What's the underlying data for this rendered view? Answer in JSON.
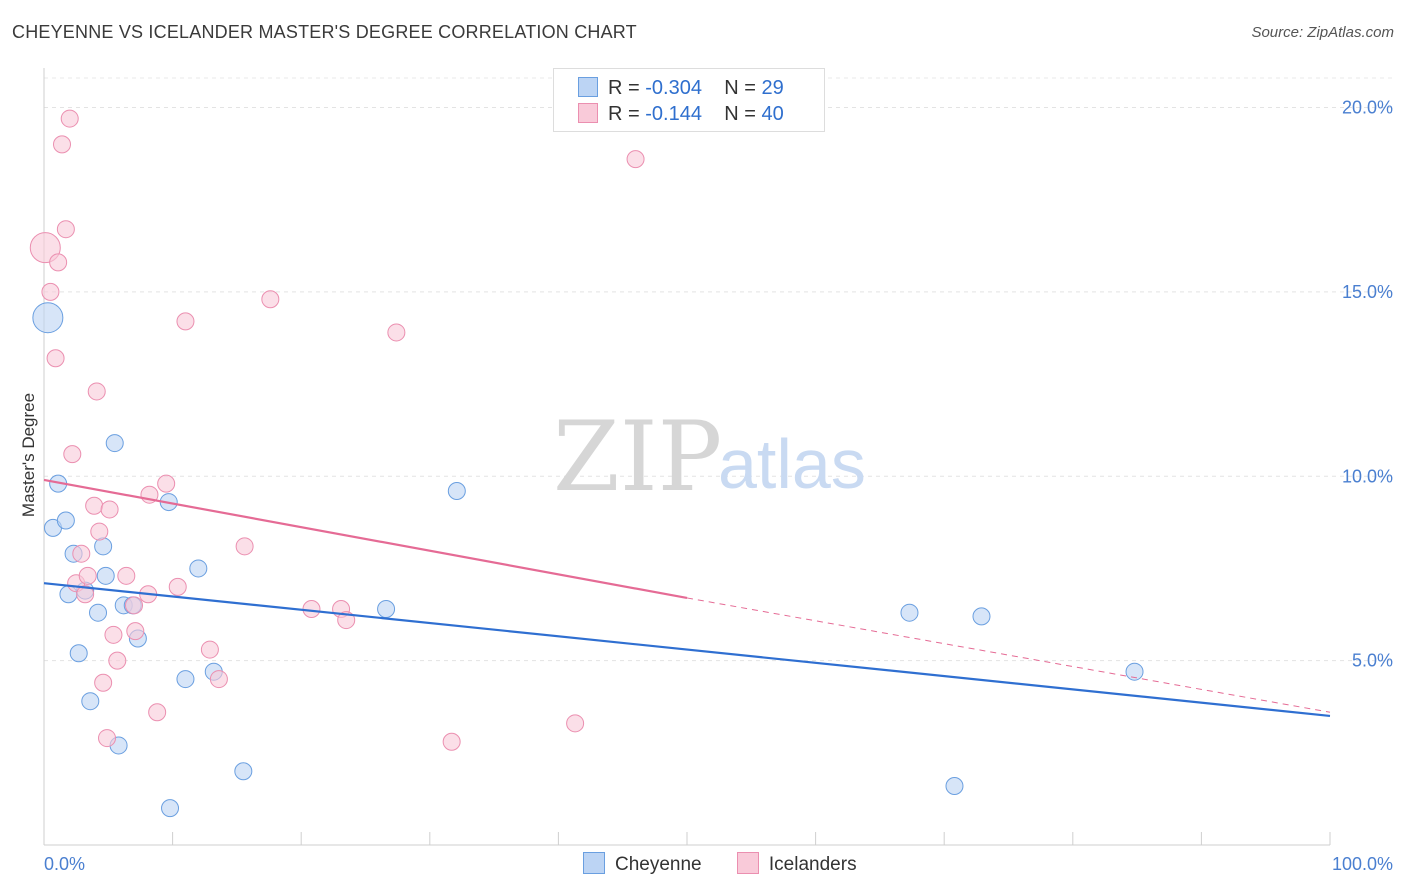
{
  "header": {
    "title": "CHEYENNE VS ICELANDER MASTER'S DEGREE CORRELATION CHART",
    "source": "Source: ZipAtlas.com"
  },
  "watermark": {
    "zip": "ZIP",
    "atlas": "atlas"
  },
  "legend": {
    "rows": [
      {
        "r_label": "R =",
        "r_value": "-0.304",
        "n_label": "N =",
        "n_value": "29",
        "color": "#6a9fe0",
        "fill": "#bcd4f4"
      },
      {
        "r_label": "R =",
        "r_value": "-0.144",
        "n_label": "N =",
        "n_value": "40",
        "color": "#eb8fb0",
        "fill": "#f9cad9"
      }
    ]
  },
  "bottom_legend": {
    "items": [
      {
        "label": "Cheyenne",
        "color": "#6a9fe0",
        "fill": "#bcd4f4"
      },
      {
        "label": "Icelanders",
        "color": "#eb8fb0",
        "fill": "#f9cad9"
      }
    ]
  },
  "chart_data": {
    "type": "scatter",
    "title": "CHEYENNE VS ICELANDER MASTER'S DEGREE CORRELATION CHART",
    "xlabel": "",
    "ylabel": "Master's Degree",
    "xlim": [
      0,
      100
    ],
    "ylim": [
      0,
      20.8
    ],
    "x_tick_labels": [
      "0.0%",
      "100.0%"
    ],
    "y_ticks": [
      5,
      10,
      15,
      20
    ],
    "y_tick_labels": [
      "5.0%",
      "10.0%",
      "15.0%",
      "20.0%"
    ],
    "grid": true,
    "series": [
      {
        "name": "Cheyenne",
        "color": "#6a9fe0",
        "fill": "#bcd4f4",
        "line_color": "#2f6fd1",
        "trend": {
          "x0": 0,
          "y0": 7.1,
          "x1": 100,
          "y1": 3.5
        },
        "points": [
          {
            "x": 0.3,
            "y": 14.3,
            "big": true
          },
          {
            "x": 1.1,
            "y": 9.8
          },
          {
            "x": 0.7,
            "y": 8.6
          },
          {
            "x": 1.7,
            "y": 8.8
          },
          {
            "x": 2.3,
            "y": 7.9
          },
          {
            "x": 1.9,
            "y": 6.8
          },
          {
            "x": 3.2,
            "y": 6.9
          },
          {
            "x": 2.7,
            "y": 5.2
          },
          {
            "x": 4.2,
            "y": 6.3
          },
          {
            "x": 4.6,
            "y": 8.1
          },
          {
            "x": 5.5,
            "y": 10.9
          },
          {
            "x": 4.8,
            "y": 7.3
          },
          {
            "x": 6.2,
            "y": 6.5
          },
          {
            "x": 6.9,
            "y": 6.5
          },
          {
            "x": 7.3,
            "y": 5.6
          },
          {
            "x": 3.6,
            "y": 3.9
          },
          {
            "x": 5.8,
            "y": 2.7
          },
          {
            "x": 9.7,
            "y": 9.3
          },
          {
            "x": 12.0,
            "y": 7.5
          },
          {
            "x": 11.0,
            "y": 4.5
          },
          {
            "x": 13.2,
            "y": 4.7
          },
          {
            "x": 9.8,
            "y": 1.0
          },
          {
            "x": 15.5,
            "y": 2.0
          },
          {
            "x": 26.6,
            "y": 6.4
          },
          {
            "x": 32.1,
            "y": 9.6
          },
          {
            "x": 67.3,
            "y": 6.3
          },
          {
            "x": 72.9,
            "y": 6.2
          },
          {
            "x": 84.8,
            "y": 4.7
          },
          {
            "x": 70.8,
            "y": 1.6
          }
        ]
      },
      {
        "name": "Icelanders",
        "color": "#eb8fb0",
        "fill": "#f9cad9",
        "line_color": "#e56b95",
        "trend": {
          "x0": 0,
          "y0": 9.9,
          "x1": 50,
          "y1": 6.7,
          "dash_x1": 100,
          "dash_y1": 3.6
        },
        "points": [
          {
            "x": 0.1,
            "y": 16.2,
            "big": true
          },
          {
            "x": 2.0,
            "y": 19.7
          },
          {
            "x": 1.4,
            "y": 19.0
          },
          {
            "x": 1.7,
            "y": 16.7
          },
          {
            "x": 1.1,
            "y": 15.8
          },
          {
            "x": 0.5,
            "y": 15.0
          },
          {
            "x": 0.9,
            "y": 13.2
          },
          {
            "x": 4.1,
            "y": 12.3
          },
          {
            "x": 2.2,
            "y": 10.6
          },
          {
            "x": 3.9,
            "y": 9.2
          },
          {
            "x": 5.1,
            "y": 9.1
          },
          {
            "x": 4.3,
            "y": 8.5
          },
          {
            "x": 2.9,
            "y": 7.9
          },
          {
            "x": 2.5,
            "y": 7.1
          },
          {
            "x": 3.4,
            "y": 7.3
          },
          {
            "x": 3.2,
            "y": 6.8
          },
          {
            "x": 6.4,
            "y": 7.3
          },
          {
            "x": 7.0,
            "y": 6.5
          },
          {
            "x": 8.1,
            "y": 6.8
          },
          {
            "x": 5.4,
            "y": 5.7
          },
          {
            "x": 7.1,
            "y": 5.8
          },
          {
            "x": 5.7,
            "y": 5.0
          },
          {
            "x": 4.6,
            "y": 4.4
          },
          {
            "x": 4.9,
            "y": 2.9
          },
          {
            "x": 8.8,
            "y": 3.6
          },
          {
            "x": 9.5,
            "y": 9.8
          },
          {
            "x": 10.4,
            "y": 7.0
          },
          {
            "x": 12.9,
            "y": 5.3
          },
          {
            "x": 13.6,
            "y": 4.5
          },
          {
            "x": 11.0,
            "y": 14.2
          },
          {
            "x": 15.6,
            "y": 8.1
          },
          {
            "x": 17.6,
            "y": 14.8
          },
          {
            "x": 20.8,
            "y": 6.4
          },
          {
            "x": 23.1,
            "y": 6.4
          },
          {
            "x": 23.5,
            "y": 6.1
          },
          {
            "x": 27.4,
            "y": 13.9
          },
          {
            "x": 31.7,
            "y": 2.8
          },
          {
            "x": 41.3,
            "y": 3.3
          },
          {
            "x": 46.0,
            "y": 18.6
          },
          {
            "x": 8.2,
            "y": 9.5
          }
        ]
      }
    ]
  }
}
